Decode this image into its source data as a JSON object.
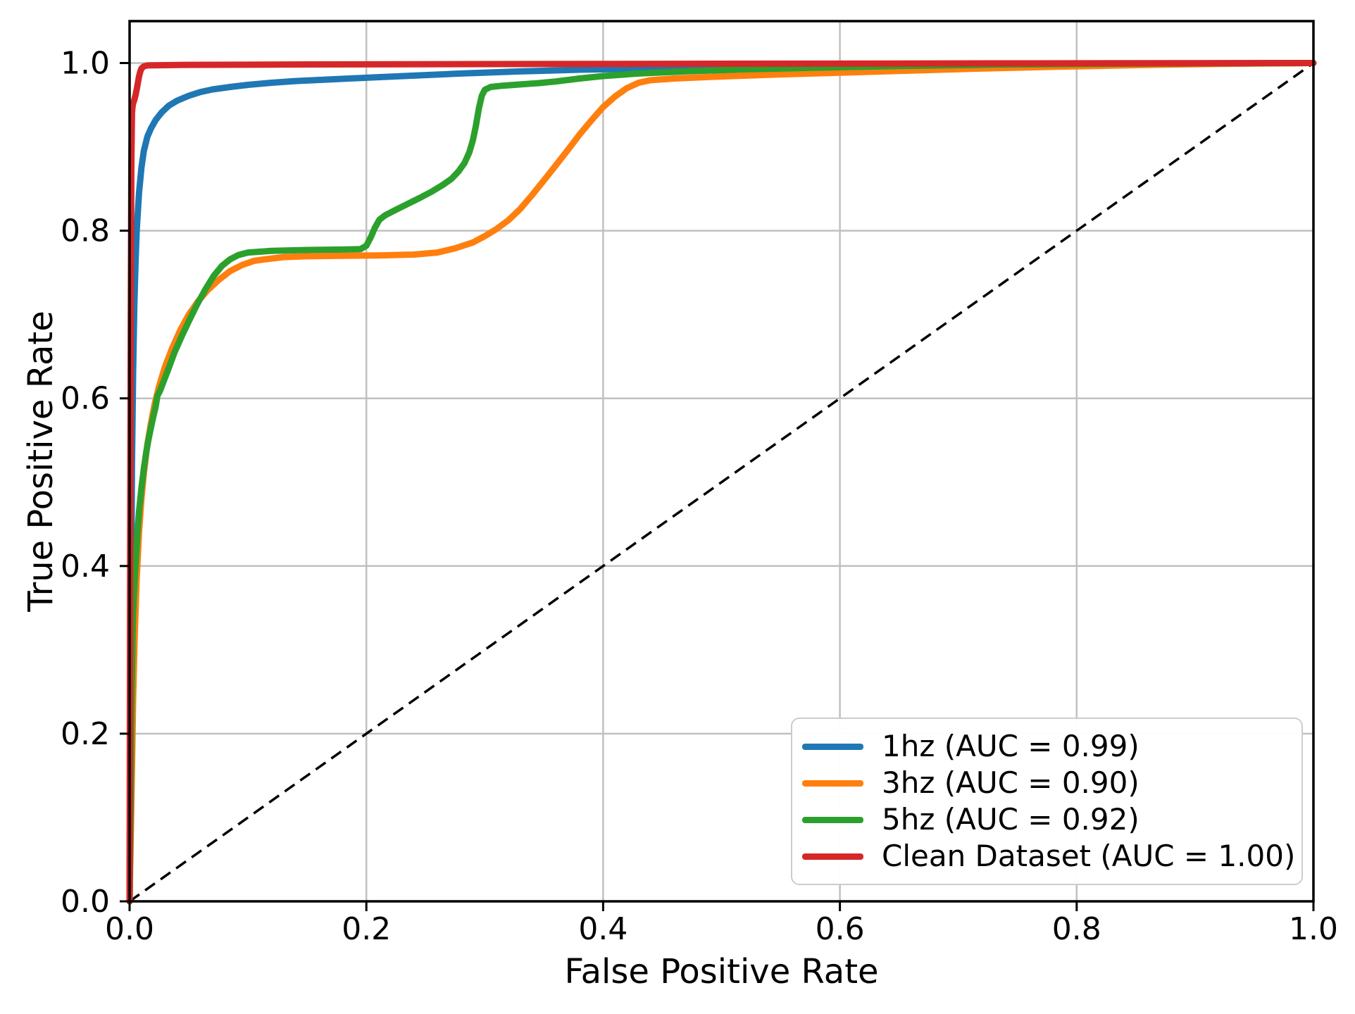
{
  "figure": {
    "background": "#ffffff",
    "spine_color": "#000000",
    "grid_color": "#c0c0c0"
  },
  "axes": {
    "xlabel": "False Positive Rate",
    "ylabel": "True Positive Rate",
    "x_tick_labels": [
      "0.0",
      "0.2",
      "0.4",
      "0.6",
      "0.8",
      "1.0"
    ],
    "y_tick_labels": [
      "0.0",
      "0.2",
      "0.4",
      "0.6",
      "0.8",
      "1.0"
    ]
  },
  "legend": {
    "items": [
      {
        "label": "1hz (AUC = 0.99)",
        "color": "#1f77b4"
      },
      {
        "label": "3hz (AUC = 0.90)",
        "color": "#ff7f0e"
      },
      {
        "label": "5hz (AUC = 0.92)",
        "color": "#2ca02c"
      },
      {
        "label": "Clean Dataset (AUC = 1.00)",
        "color": "#d62728"
      }
    ]
  },
  "chart_data": {
    "type": "line",
    "title": "",
    "xlabel": "False Positive Rate",
    "ylabel": "True Positive Rate",
    "xlim": [
      0,
      1
    ],
    "ylim": [
      0,
      1.05
    ],
    "x_ticks": [
      0,
      0.2,
      0.4,
      0.6,
      0.8,
      1.0
    ],
    "y_ticks": [
      0,
      0.2,
      0.4,
      0.6,
      0.8,
      1.0
    ],
    "grid": true,
    "legend_position": "lower right",
    "reference_line": {
      "name": "chance-diagonal",
      "color": "#000000",
      "dash": [
        17,
        10
      ],
      "points": [
        [
          0,
          0
        ],
        [
          1,
          1
        ]
      ]
    },
    "series": [
      {
        "name": "1hz (AUC = 0.99)",
        "color": "#1f77b4",
        "points": [
          [
            0,
            0
          ],
          [
            0.001,
            0.3
          ],
          [
            0.002,
            0.52
          ],
          [
            0.003,
            0.63
          ],
          [
            0.004,
            0.71
          ],
          [
            0.005,
            0.76
          ],
          [
            0.006,
            0.8
          ],
          [
            0.008,
            0.845
          ],
          [
            0.01,
            0.875
          ],
          [
            0.012,
            0.895
          ],
          [
            0.015,
            0.912
          ],
          [
            0.018,
            0.922
          ],
          [
            0.022,
            0.932
          ],
          [
            0.027,
            0.941
          ],
          [
            0.033,
            0.949
          ],
          [
            0.04,
            0.955
          ],
          [
            0.05,
            0.961
          ],
          [
            0.06,
            0.9655
          ],
          [
            0.07,
            0.9685
          ],
          [
            0.085,
            0.9715
          ],
          [
            0.1,
            0.974
          ],
          [
            0.12,
            0.9765
          ],
          [
            0.14,
            0.9785
          ],
          [
            0.17,
            0.9805
          ],
          [
            0.2,
            0.9825
          ],
          [
            0.24,
            0.985
          ],
          [
            0.28,
            0.9875
          ],
          [
            0.33,
            0.99
          ],
          [
            0.38,
            0.992
          ],
          [
            0.44,
            0.9935
          ],
          [
            0.5,
            0.995
          ],
          [
            0.58,
            0.9965
          ],
          [
            0.66,
            0.9975
          ],
          [
            0.75,
            0.9985
          ],
          [
            0.85,
            0.9993
          ],
          [
            1,
            1
          ]
        ]
      },
      {
        "name": "3hz (AUC = 0.90)",
        "color": "#ff7f0e",
        "points": [
          [
            0,
            0
          ],
          [
            0.001,
            0.08
          ],
          [
            0.002,
            0.16
          ],
          [
            0.003,
            0.24
          ],
          [
            0.004,
            0.3
          ],
          [
            0.005,
            0.345
          ],
          [
            0.006,
            0.385
          ],
          [
            0.008,
            0.44
          ],
          [
            0.01,
            0.48
          ],
          [
            0.012,
            0.51
          ],
          [
            0.015,
            0.545
          ],
          [
            0.018,
            0.57
          ],
          [
            0.021,
            0.592
          ],
          [
            0.025,
            0.615
          ],
          [
            0.03,
            0.638
          ],
          [
            0.036,
            0.66
          ],
          [
            0.043,
            0.682
          ],
          [
            0.05,
            0.7
          ],
          [
            0.058,
            0.716
          ],
          [
            0.066,
            0.729
          ],
          [
            0.075,
            0.741
          ],
          [
            0.085,
            0.752
          ],
          [
            0.095,
            0.759
          ],
          [
            0.105,
            0.764
          ],
          [
            0.115,
            0.766
          ],
          [
            0.13,
            0.7685
          ],
          [
            0.15,
            0.7695
          ],
          [
            0.18,
            0.77
          ],
          [
            0.21,
            0.7705
          ],
          [
            0.24,
            0.7715
          ],
          [
            0.26,
            0.774
          ],
          [
            0.275,
            0.779
          ],
          [
            0.29,
            0.786
          ],
          [
            0.3,
            0.7935
          ],
          [
            0.31,
            0.802
          ],
          [
            0.32,
            0.8125
          ],
          [
            0.33,
            0.826
          ],
          [
            0.34,
            0.8425
          ],
          [
            0.35,
            0.86
          ],
          [
            0.36,
            0.878
          ],
          [
            0.37,
            0.896
          ],
          [
            0.38,
            0.9145
          ],
          [
            0.39,
            0.9315
          ],
          [
            0.4,
            0.9475
          ],
          [
            0.41,
            0.96
          ],
          [
            0.42,
            0.97
          ],
          [
            0.43,
            0.9765
          ],
          [
            0.44,
            0.9795
          ],
          [
            0.46,
            0.9815
          ],
          [
            0.5,
            0.984
          ],
          [
            0.55,
            0.9865
          ],
          [
            0.6,
            0.9885
          ],
          [
            0.66,
            0.991
          ],
          [
            0.72,
            0.9935
          ],
          [
            0.78,
            0.9955
          ],
          [
            0.85,
            0.9975
          ],
          [
            0.92,
            0.999
          ],
          [
            1,
            1
          ]
        ]
      },
      {
        "name": "5hz (AUC = 0.92)",
        "color": "#2ca02c",
        "points": [
          [
            0,
            0
          ],
          [
            0.001,
            0.13
          ],
          [
            0.0015,
            0.21
          ],
          [
            0.002,
            0.27
          ],
          [
            0.0025,
            0.315
          ],
          [
            0.003,
            0.345
          ],
          [
            0.0035,
            0.362
          ],
          [
            0.004,
            0.375
          ],
          [
            0.005,
            0.4
          ],
          [
            0.006,
            0.425
          ],
          [
            0.007,
            0.447
          ],
          [
            0.008,
            0.465
          ],
          [
            0.01,
            0.493
          ],
          [
            0.012,
            0.516
          ],
          [
            0.014,
            0.535
          ],
          [
            0.016,
            0.551
          ],
          [
            0.018,
            0.565
          ],
          [
            0.02,
            0.578
          ],
          [
            0.022,
            0.59
          ],
          [
            0.0235,
            0.603
          ],
          [
            0.026,
            0.61
          ],
          [
            0.029,
            0.621
          ],
          [
            0.033,
            0.636
          ],
          [
            0.038,
            0.655
          ],
          [
            0.044,
            0.674
          ],
          [
            0.05,
            0.692
          ],
          [
            0.057,
            0.712
          ],
          [
            0.064,
            0.73
          ],
          [
            0.071,
            0.746
          ],
          [
            0.078,
            0.758
          ],
          [
            0.085,
            0.766
          ],
          [
            0.092,
            0.771
          ],
          [
            0.1,
            0.774
          ],
          [
            0.12,
            0.776
          ],
          [
            0.15,
            0.777
          ],
          [
            0.18,
            0.7775
          ],
          [
            0.195,
            0.778
          ],
          [
            0.2,
            0.782
          ],
          [
            0.204,
            0.793
          ],
          [
            0.207,
            0.803
          ],
          [
            0.211,
            0.813
          ],
          [
            0.216,
            0.8185
          ],
          [
            0.225,
            0.825
          ],
          [
            0.235,
            0.832
          ],
          [
            0.245,
            0.839
          ],
          [
            0.255,
            0.8465
          ],
          [
            0.265,
            0.855
          ],
          [
            0.272,
            0.862
          ],
          [
            0.278,
            0.871
          ],
          [
            0.283,
            0.881
          ],
          [
            0.287,
            0.8935
          ],
          [
            0.29,
            0.908
          ],
          [
            0.2925,
            0.925
          ],
          [
            0.295,
            0.9455
          ],
          [
            0.2975,
            0.961
          ],
          [
            0.3,
            0.968
          ],
          [
            0.305,
            0.9715
          ],
          [
            0.315,
            0.973
          ],
          [
            0.33,
            0.9745
          ],
          [
            0.345,
            0.976
          ],
          [
            0.36,
            0.978
          ],
          [
            0.38,
            0.9815
          ],
          [
            0.4,
            0.9845
          ],
          [
            0.43,
            0.9875
          ],
          [
            0.47,
            0.99
          ],
          [
            0.52,
            0.9925
          ],
          [
            0.58,
            0.9945
          ],
          [
            0.65,
            0.9965
          ],
          [
            0.73,
            0.998
          ],
          [
            0.82,
            0.9991
          ],
          [
            1,
            1
          ]
        ]
      },
      {
        "name": "Clean Dataset (AUC = 1.00)",
        "color": "#d62728",
        "points": [
          [
            0,
            0
          ],
          [
            0.0005,
            0.4
          ],
          [
            0.001,
            0.7
          ],
          [
            0.0015,
            0.88
          ],
          [
            0.002,
            0.94
          ],
          [
            0.0025,
            0.948
          ],
          [
            0.003,
            0.952
          ],
          [
            0.004,
            0.956
          ],
          [
            0.005,
            0.9615
          ],
          [
            0.006,
            0.9685
          ],
          [
            0.007,
            0.9765
          ],
          [
            0.008,
            0.984
          ],
          [
            0.009,
            0.9895
          ],
          [
            0.01,
            0.9935
          ],
          [
            0.012,
            0.996
          ],
          [
            0.015,
            0.9972
          ],
          [
            0.05,
            0.9978
          ],
          [
            0.15,
            0.9983
          ],
          [
            0.3,
            0.9988
          ],
          [
            0.5,
            0.9992
          ],
          [
            0.75,
            0.9996
          ],
          [
            1,
            1
          ]
        ]
      }
    ]
  }
}
